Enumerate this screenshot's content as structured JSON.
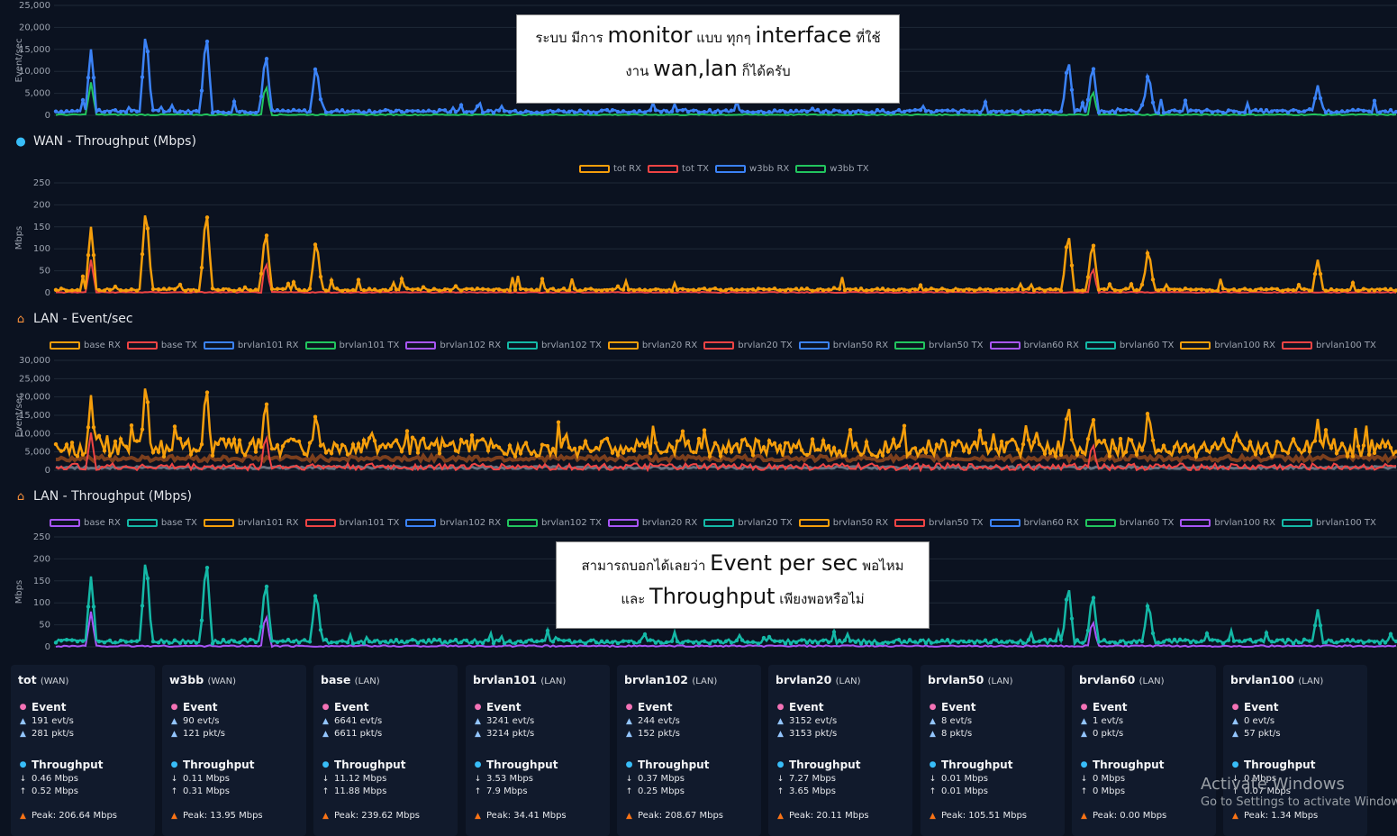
{
  "sections": [
    {
      "key": "wan_event",
      "title": "",
      "icon": "",
      "ylabel": "Event/sec",
      "yticks": [
        "25,000",
        "20,000",
        "15,000",
        "10,000",
        "5,000",
        "0"
      ],
      "ymax": 25000,
      "legend": [],
      "base_color": "#3b82f6",
      "accents": [
        "#22c55e",
        "#60a5fa"
      ],
      "spike_peaks": [
        15000,
        20300,
        19600,
        15000,
        12200,
        13500,
        12300,
        10200,
        6800
      ]
    },
    {
      "key": "wan_tp",
      "title": "WAN - Throughput (Mbps)",
      "icon": "globe-icon",
      "ylabel": "Mbps",
      "yticks": [
        "250",
        "200",
        "150",
        "100",
        "50",
        "0"
      ],
      "ymax": 250,
      "legend": [
        {
          "label": "tot RX",
          "color": "#f59e0b"
        },
        {
          "label": "tot TX",
          "color": "#ef4444"
        },
        {
          "label": "w3bb RX",
          "color": "#3b82f6"
        },
        {
          "label": "w3bb TX",
          "color": "#22c55e"
        }
      ],
      "base_color": "#f59e0b",
      "accents": [
        "#ef4444",
        "#22c55e"
      ],
      "spike_peaks": [
        150,
        205,
        200,
        152,
        128,
        145,
        125,
        105,
        75
      ]
    },
    {
      "key": "lan_event",
      "title": "LAN - Event/sec",
      "icon": "house-icon",
      "ylabel": "Event/sec",
      "yticks": [
        "30,000",
        "25,000",
        "20,000",
        "15,000",
        "10,000",
        "5,000",
        "0"
      ],
      "ymax": 30000,
      "legend": [
        {
          "label": "base RX",
          "color": "#f59e0b"
        },
        {
          "label": "base TX",
          "color": "#ef4444"
        },
        {
          "label": "brvlan101 RX",
          "color": "#3b82f6"
        },
        {
          "label": "brvlan101 TX",
          "color": "#22c55e"
        },
        {
          "label": "brvlan102 RX",
          "color": "#a855f7"
        },
        {
          "label": "brvlan102 TX",
          "color": "#14b8a6"
        },
        {
          "label": "brvlan20 RX",
          "color": "#f59e0b"
        },
        {
          "label": "brvlan20 TX",
          "color": "#ef4444"
        },
        {
          "label": "brvlan50 RX",
          "color": "#3b82f6"
        },
        {
          "label": "brvlan50 TX",
          "color": "#22c55e"
        },
        {
          "label": "brvlan60 RX",
          "color": "#a855f7"
        },
        {
          "label": "brvlan60 TX",
          "color": "#14b8a6"
        },
        {
          "label": "brvlan100 RX",
          "color": "#f59e0b"
        },
        {
          "label": "brvlan100 TX",
          "color": "#ef4444"
        }
      ],
      "base_color": "#f59e0b",
      "accents": [
        "#ef4444",
        "#14b8a6",
        "#a855f7"
      ],
      "spike_peaks": [
        20500,
        26000,
        24800,
        21000,
        17000,
        19500,
        16000,
        18000,
        14000
      ]
    },
    {
      "key": "lan_tp",
      "title": "LAN - Throughput (Mbps)",
      "icon": "house-icon",
      "ylabel": "Mbps",
      "yticks": [
        "250",
        "200",
        "150",
        "100",
        "50",
        "0"
      ],
      "ymax": 250,
      "legend": [
        {
          "label": "base RX",
          "color": "#a855f7"
        },
        {
          "label": "base TX",
          "color": "#14b8a6"
        },
        {
          "label": "brvlan101 RX",
          "color": "#f59e0b"
        },
        {
          "label": "brvlan101 TX",
          "color": "#ef4444"
        },
        {
          "label": "brvlan102 RX",
          "color": "#3b82f6"
        },
        {
          "label": "brvlan102 TX",
          "color": "#22c55e"
        },
        {
          "label": "brvlan20 RX",
          "color": "#a855f7"
        },
        {
          "label": "brvlan20 TX",
          "color": "#14b8a6"
        },
        {
          "label": "brvlan50 RX",
          "color": "#f59e0b"
        },
        {
          "label": "brvlan50 TX",
          "color": "#ef4444"
        },
        {
          "label": "brvlan60 RX",
          "color": "#3b82f6"
        },
        {
          "label": "brvlan60 TX",
          "color": "#22c55e"
        },
        {
          "label": "brvlan100 RX",
          "color": "#a855f7"
        },
        {
          "label": "brvlan100 TX",
          "color": "#14b8a6"
        }
      ],
      "base_color": "#14b8a6",
      "accents": [
        "#a855f7",
        "#f59e0b"
      ],
      "spike_peaks": [
        160,
        218,
        210,
        160,
        135,
        150,
        130,
        108,
        85
      ]
    }
  ],
  "notes": [
    {
      "line1_a": "ระบบ มีการ ",
      "line1_b": "monitor",
      "line1_c": " แบบ ทุกๆ ",
      "line1_d": "interface",
      "line1_e": " ที่ใช้",
      "line2_a": "งาน ",
      "line2_b": "wan,lan",
      "line2_c": " ก็ได้ครับ"
    },
    {
      "line1_a": "สามารถบอกได้เลยว่า ",
      "line1_b": "Event per sec",
      "line1_c": " พอไหม",
      "line1_d": "",
      "line1_e": "",
      "line2_a": "และ ",
      "line2_b": "Throughput",
      "line2_c": " เพียงพอหรือไม่"
    }
  ],
  "cards": [
    {
      "name": "tot",
      "type": "(WAN)",
      "event_label": "Event",
      "evt": "191 evt/s",
      "pkt": "281 pkt/s",
      "tp_label": "Throughput",
      "down": "0.46 Mbps",
      "up": "0.52 Mbps",
      "peak": "Peak: 206.64 Mbps"
    },
    {
      "name": "w3bb",
      "type": "(WAN)",
      "event_label": "Event",
      "evt": "90 evt/s",
      "pkt": "121 pkt/s",
      "tp_label": "Throughput",
      "down": "0.11 Mbps",
      "up": "0.31 Mbps",
      "peak": "Peak: 13.95 Mbps"
    },
    {
      "name": "base",
      "type": "(LAN)",
      "event_label": "Event",
      "evt": "6641 evt/s",
      "pkt": "6611 pkt/s",
      "tp_label": "Throughput",
      "down": "11.12 Mbps",
      "up": "11.88 Mbps",
      "peak": "Peak: 239.62 Mbps"
    },
    {
      "name": "brvlan101",
      "type": "(LAN)",
      "event_label": "Event",
      "evt": "3241 evt/s",
      "pkt": "3214 pkt/s",
      "tp_label": "Throughput",
      "down": "3.53 Mbps",
      "up": "7.9 Mbps",
      "peak": "Peak: 34.41 Mbps"
    },
    {
      "name": "brvlan102",
      "type": "(LAN)",
      "event_label": "Event",
      "evt": "244 evt/s",
      "pkt": "152 pkt/s",
      "tp_label": "Throughput",
      "down": "0.37 Mbps",
      "up": "0.25 Mbps",
      "peak": "Peak: 208.67 Mbps"
    },
    {
      "name": "brvlan20",
      "type": "(LAN)",
      "event_label": "Event",
      "evt": "3152 evt/s",
      "pkt": "3153 pkt/s",
      "tp_label": "Throughput",
      "down": "7.27 Mbps",
      "up": "3.65 Mbps",
      "peak": "Peak: 20.11 Mbps"
    },
    {
      "name": "brvlan50",
      "type": "(LAN)",
      "event_label": "Event",
      "evt": "8 evt/s",
      "pkt": "8 pkt/s",
      "tp_label": "Throughput",
      "down": "0.01 Mbps",
      "up": "0.01 Mbps",
      "peak": "Peak: 105.51 Mbps"
    },
    {
      "name": "brvlan60",
      "type": "(LAN)",
      "event_label": "Event",
      "evt": "1 evt/s",
      "pkt": "0 pkt/s",
      "tp_label": "Throughput",
      "down": "0 Mbps",
      "up": "0 Mbps",
      "peak": "Peak: 0.00 Mbps"
    },
    {
      "name": "brvlan100",
      "type": "(LAN)",
      "event_label": "Event",
      "evt": "0 evt/s",
      "pkt": "57 pkt/s",
      "tp_label": "Throughput",
      "down": "0 Mbps",
      "up": "0.07 Mbps",
      "peak": "Peak: 1.34 Mbps"
    }
  ],
  "watermark": {
    "line1": "Activate Windows",
    "line2": "Go to Settings to activate Windows."
  }
}
